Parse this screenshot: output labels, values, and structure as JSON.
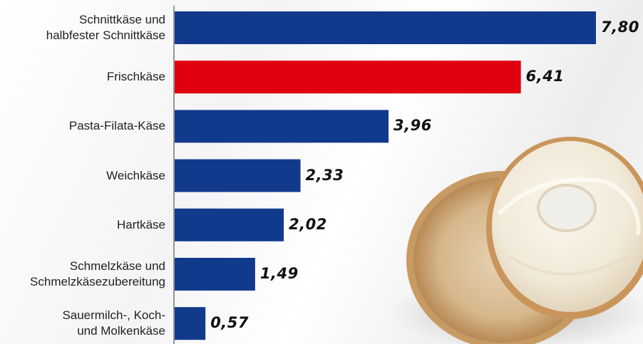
{
  "chart_data": {
    "type": "bar",
    "orientation": "horizontal",
    "categories": [
      "Schnittkäse und\nhalbfester Schnittkäse",
      "Frischkäse",
      "Pasta-Filata-Käse",
      "Weichkäse",
      "Hartkäse",
      "Schmelzkäse und\nSchmelzkäsezubereitung",
      "Sauermilch-, Koch-\nund Molkenkäse"
    ],
    "values": [
      7.8,
      6.41,
      3.96,
      2.33,
      2.02,
      1.49,
      0.57
    ],
    "value_labels": [
      "7,80",
      "6,41",
      "3,96",
      "2,33",
      "2,02",
      "1,49",
      "0,57"
    ],
    "bar_colors": [
      "#123a8c",
      "#e0000f",
      "#123a8c",
      "#123a8c",
      "#123a8c",
      "#123a8c",
      "#123a8c"
    ],
    "xlim": [
      0,
      7.8
    ],
    "grid": false,
    "title": "",
    "xlabel": "",
    "ylabel": ""
  },
  "colors": {
    "primary_bar": "#123a8c",
    "highlight_bar": "#e0000f",
    "axis": "#333333"
  },
  "decoration": {
    "image": "bagel-with-cream-cheese"
  }
}
